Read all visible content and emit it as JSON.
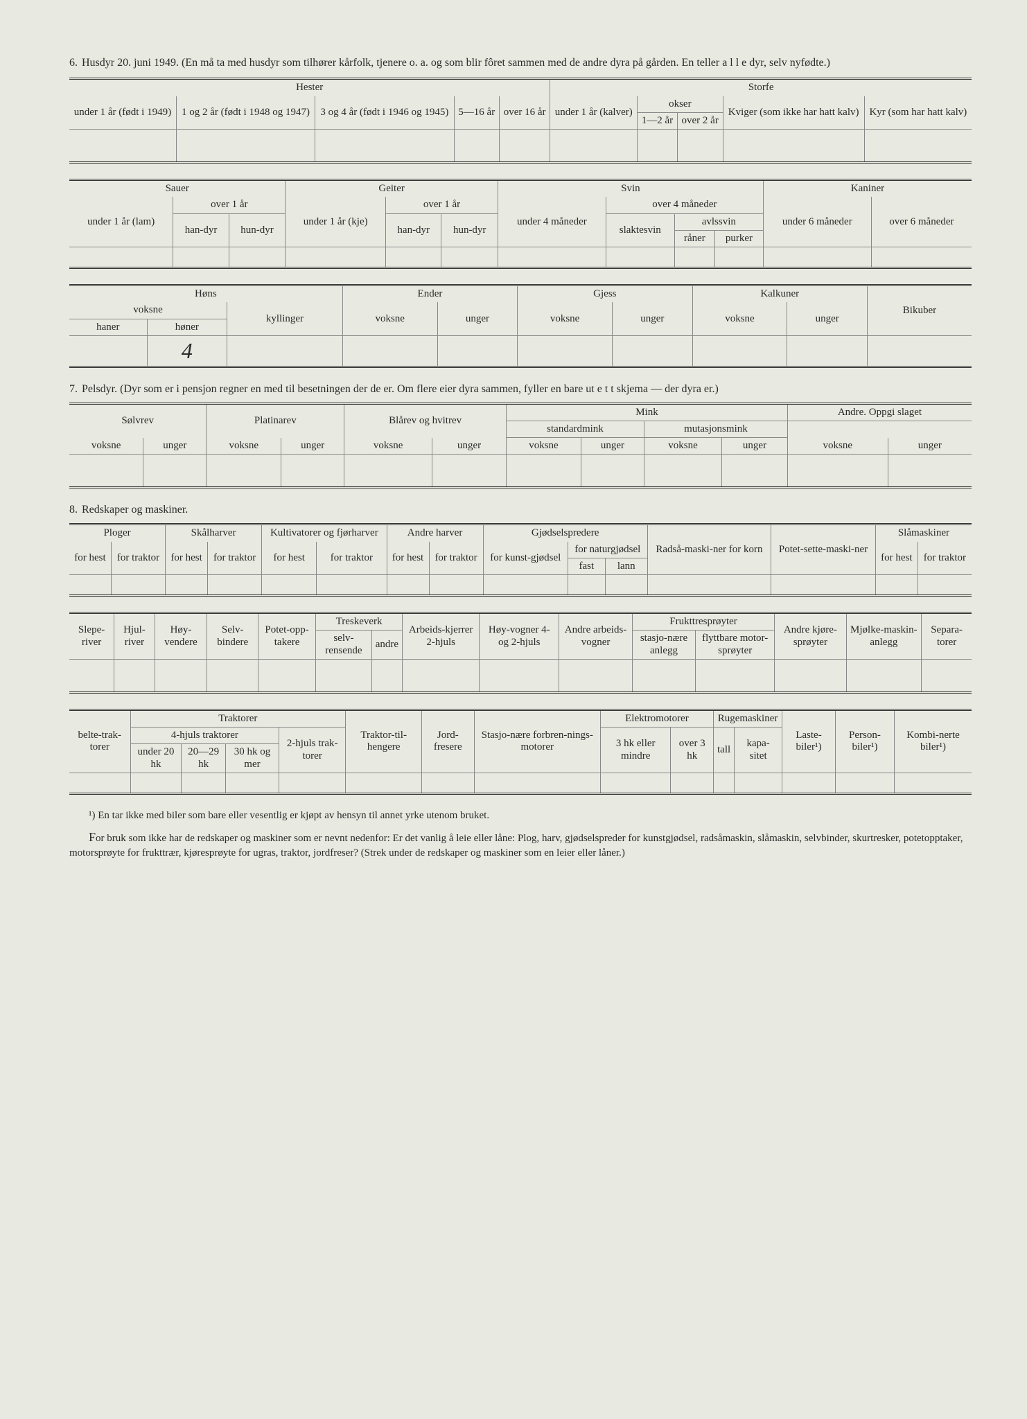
{
  "page_bg": "#e8e9e0",
  "text_color": "#2a2a2a",
  "rule_color": "#888888",
  "font_family": "Georgia, Times New Roman, serif",
  "section6": {
    "number": "6.",
    "title": "Husdyr 20. juni 1949. (En må ta med husdyr som tilhører kårfolk, tjenere o. a. og som blir fôret sammen med de andre dyra på gården. En teller a l l e dyr, selv nyfødte.)"
  },
  "t6a": {
    "g1": "Hester",
    "g2": "Storfe",
    "h1": "under 1 år (født i 1949)",
    "h2": "1 og 2 år (født i 1948 og 1947)",
    "h3": "3 og 4 år (født i 1946 og 1945)",
    "h4": "5—16 år",
    "h5": "over 16 år",
    "h6": "under 1 år (kalver)",
    "h7": "okser",
    "h7a": "1—2 år",
    "h7b": "over 2 år",
    "h8": "Kviger (som ikke har hatt kalv)",
    "h9": "Kyr (som har hatt kalv)"
  },
  "t6b": {
    "g1": "Sauer",
    "g2": "Geiter",
    "g3": "Svin",
    "g4": "Kaniner",
    "sau1": "under 1 år (lam)",
    "sau2": "over 1 år",
    "sau2a": "han-dyr",
    "sau2b": "hun-dyr",
    "geit1": "under 1 år (kje)",
    "geit2": "over 1 år",
    "geit2a": "han-dyr",
    "geit2b": "hun-dyr",
    "svin1": "under 4 måneder",
    "svin2": "over 4 måneder",
    "svin2a": "slaktesvin",
    "svin2b": "avlssvin",
    "svin2b1": "råner",
    "svin2b2": "purker",
    "kan1": "under 6 måneder",
    "kan2": "over 6 måneder"
  },
  "t6c": {
    "g1": "Høns",
    "g2": "Ender",
    "g3": "Gjess",
    "g4": "Kalkuner",
    "g5": "Bikuber",
    "hons1": "voksne",
    "hons1a": "haner",
    "hons1b": "høner",
    "hons2": "kyllinger",
    "voksne": "voksne",
    "unger": "unger",
    "val_honer": "4"
  },
  "section7": {
    "number": "7.",
    "title": "Pelsdyr. (Dyr som er i pensjon regner en med til besetningen der de er. Om flere eier dyra sammen, fyller en bare ut e t t skjema — der dyra er.)"
  },
  "t7": {
    "g1": "Sølvrev",
    "g2": "Platinarev",
    "g3": "Blårev og hvitrev",
    "g4": "Mink",
    "g4a": "standardmink",
    "g4b": "mutasjonsmink",
    "g5": "Andre. Oppgi slaget",
    "voksne": "voksne",
    "unger": "unger"
  },
  "section8": {
    "number": "8.",
    "title": "Redskaper og maskiner."
  },
  "t8a": {
    "g1": "Ploger",
    "g2": "Skålharver",
    "g3": "Kultivatorer og fjørharver",
    "g4": "Andre harver",
    "g5": "Gjødselspredere",
    "g6": "Radså-maski-ner for korn",
    "g7": "Potet-sette-maski-ner",
    "g8": "Slåmaskiner",
    "for_hest": "for hest",
    "for_traktor": "for traktor",
    "g5a": "for kunst-gjødsel",
    "g5b": "for naturgjødsel",
    "g5b1": "fast",
    "g5b2": "lann"
  },
  "t8b": {
    "c1": "Slepe-river",
    "c2": "Hjul-river",
    "c3": "Høy-vendere",
    "c4": "Selv-bindere",
    "c5": "Potet-opp-takere",
    "c6": "Treskeverk",
    "c6a": "selv-rensende",
    "c6b": "andre",
    "c7": "Arbeids-kjerrer 2-hjuls",
    "c8": "Høy-vogner 4- og 2-hjuls",
    "c9": "Andre arbeids-vogner",
    "c10": "Frukttresprøyter",
    "c10a": "stasjo-nære anlegg",
    "c10b": "flyttbare motor-sprøyter",
    "c11": "Andre kjøre-sprøyter",
    "c12": "Mjølke-maskin-anlegg",
    "c13": "Separa-torer"
  },
  "t8c": {
    "c1": "belte-trak-torer",
    "g2": "Traktorer",
    "g2a": "4-hjuls traktorer",
    "g2a1": "under 20 hk",
    "g2a2": "20—29 hk",
    "g2a3": "30 hk og mer",
    "g2b": "2-hjuls trak-torer",
    "c3": "Traktor-til-hengere",
    "c4": "Jord-fresere",
    "c5": "Stasjo-nære forbren-nings-motorer",
    "g6": "Elektromotorer",
    "g6a": "3 hk eller mindre",
    "g6b": "over 3 hk",
    "g7": "Rugemaskiner",
    "g7a": "tall",
    "g7b": "kapa-sitet",
    "c8": "Laste-biler¹)",
    "c9": "Person-biler¹)",
    "c10": "Kombi-nerte biler¹)"
  },
  "footnote": "¹) En tar ikke med biler som bare eller vesentlig er kjøpt av hensyn til annet yrke utenom bruket.",
  "para1_start": "F",
  "para1": "or bruk som ikke har de redskaper og maskiner som er nevnt nedenfor: Er det vanlig å leie eller låne: Plog, harv, gjødselspreder for kunstgjødsel, radsåmaskin, slåmaskin, selvbinder, skurtresker, potetopptaker, motorsprøyte for frukttrær, kjøresprøyte for ugras, traktor, jordfreser? (Strek under de redskaper og maskiner som en leier eller låner.)"
}
